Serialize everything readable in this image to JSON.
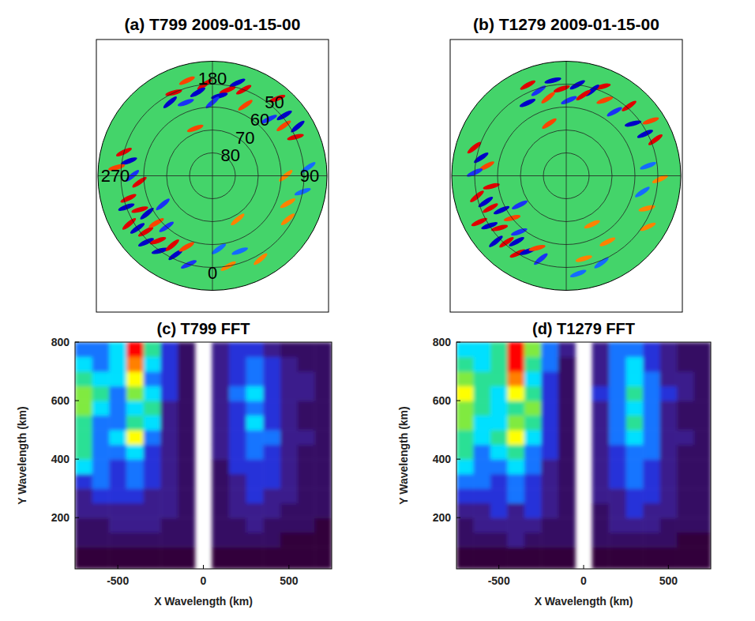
{
  "chart_data": [
    {
      "type": "polar_map",
      "title": "(a) T799 2009-01-15-00",
      "lat_lim": [
        40,
        90
      ],
      "lat_ticks": [
        50,
        60,
        70,
        80
      ],
      "lon_ticks": [
        180,
        270,
        90,
        0
      ],
      "zlim": [
        -3,
        3
      ],
      "waves": [
        [
          300,
          48,
          3
        ],
        [
          305,
          50,
          -3
        ],
        [
          310,
          52,
          3
        ],
        [
          315,
          49,
          -3
        ],
        [
          320,
          53,
          3
        ],
        [
          325,
          50,
          -3
        ],
        [
          330,
          55,
          3
        ],
        [
          335,
          52,
          -3
        ],
        [
          295,
          55,
          3
        ],
        [
          300,
          57,
          -3
        ],
        [
          310,
          58,
          2
        ],
        [
          285,
          52,
          3
        ],
        [
          290,
          50,
          -3
        ],
        [
          340,
          57,
          2
        ],
        [
          345,
          50,
          -2
        ],
        [
          318,
          60,
          -2
        ],
        [
          255,
          50,
          3
        ],
        [
          260,
          53,
          -3
        ],
        [
          265,
          48,
          2
        ],
        [
          270,
          55,
          -2
        ],
        [
          275,
          58,
          3
        ],
        [
          160,
          50,
          3
        ],
        [
          165,
          48,
          -3
        ],
        [
          170,
          52,
          3
        ],
        [
          175,
          55,
          -3
        ],
        [
          185,
          50,
          3
        ],
        [
          190,
          53,
          -3
        ],
        [
          195,
          47,
          2
        ],
        [
          200,
          56,
          -2
        ],
        [
          205,
          50,
          3
        ],
        [
          210,
          53,
          -3
        ],
        [
          155,
          56,
          2
        ],
        [
          180,
          58,
          -2
        ],
        [
          115,
          50,
          3
        ],
        [
          120,
          47,
          -3
        ],
        [
          125,
          52,
          2
        ],
        [
          130,
          49,
          -3
        ],
        [
          140,
          46,
          3
        ],
        [
          135,
          55,
          -2
        ],
        [
          70,
          55,
          1.5
        ],
        [
          80,
          50,
          -1.5
        ],
        [
          90,
          58,
          1.5
        ],
        [
          95,
          48,
          -1.5
        ],
        [
          60,
          52,
          1.5
        ],
        [
          10,
          50,
          1.5
        ],
        [
          20,
          55,
          -1.5
        ],
        [
          30,
          48,
          1.5
        ],
        [
          5,
          58,
          -1.5
        ],
        [
          300,
          65,
          -2
        ],
        [
          200,
          68,
          2
        ],
        [
          30,
          68,
          1.5
        ]
      ]
    },
    {
      "type": "polar_map",
      "title": "(b) T1279 2009-01-15-00",
      "lat_lim": [
        40,
        90
      ],
      "lat_ticks": [
        50,
        60,
        70,
        80
      ],
      "lon_ticks": [
        180,
        270,
        90,
        0
      ],
      "tick_labels": false,
      "zlim": [
        -3,
        3
      ],
      "waves": [
        [
          298,
          47,
          3
        ],
        [
          303,
          50,
          -3
        ],
        [
          308,
          53,
          3
        ],
        [
          313,
          48,
          -3
        ],
        [
          318,
          51,
          3
        ],
        [
          323,
          54,
          -3
        ],
        [
          328,
          50,
          3
        ],
        [
          333,
          53,
          -3
        ],
        [
          338,
          56,
          2
        ],
        [
          293,
          54,
          3
        ],
        [
          298,
          58,
          -3
        ],
        [
          308,
          60,
          2
        ],
        [
          283,
          50,
          3
        ],
        [
          288,
          53,
          -3
        ],
        [
          343,
          52,
          -2
        ],
        [
          320,
          58,
          -2
        ],
        [
          253,
          48,
          3
        ],
        [
          258,
          52,
          -3
        ],
        [
          263,
          55,
          2
        ],
        [
          268,
          50,
          -2
        ],
        [
          278,
          57,
          3
        ],
        [
          158,
          48,
          3
        ],
        [
          163,
          51,
          -3
        ],
        [
          168,
          54,
          3
        ],
        [
          173,
          50,
          -3
        ],
        [
          183,
          52,
          3
        ],
        [
          188,
          48,
          -3
        ],
        [
          193,
          55,
          2
        ],
        [
          198,
          51,
          -2
        ],
        [
          203,
          47,
          3
        ],
        [
          208,
          54,
          -3
        ],
        [
          153,
          53,
          2
        ],
        [
          178,
          57,
          -2
        ],
        [
          112,
          48,
          3
        ],
        [
          118,
          51,
          -3
        ],
        [
          123,
          46,
          2
        ],
        [
          128,
          53,
          -3
        ],
        [
          138,
          49,
          3
        ],
        [
          143,
          55,
          -2
        ],
        [
          68,
          52,
          1.5
        ],
        [
          78,
          56,
          -1.5
        ],
        [
          88,
          49,
          1.5
        ],
        [
          97,
          54,
          -1.5
        ],
        [
          58,
          48,
          1.5
        ],
        [
          12,
          53,
          1.5
        ],
        [
          22,
          49,
          -1.5
        ],
        [
          32,
          56,
          1.5
        ],
        [
          7,
          47,
          -1.5
        ],
        [
          302,
          66,
          -2
        ],
        [
          198,
          66,
          2
        ],
        [
          28,
          66,
          1.5
        ]
      ]
    },
    {
      "type": "heatmap",
      "title": "(c) T799 FFT",
      "x_label": "X Wavelength (km)",
      "y_label": "Y Wavelength (km)",
      "xlim": [
        -750,
        750
      ],
      "ylim": [
        25,
        800
      ],
      "xticks": [
        -500,
        0,
        500
      ],
      "yticks": [
        200,
        400,
        600,
        800
      ],
      "zlim": [
        0,
        10
      ],
      "x_edges": [
        -750,
        -650,
        -550,
        -450,
        -350,
        -250,
        -150,
        -50,
        50,
        150,
        250,
        350,
        450,
        550,
        650,
        750
      ],
      "y_edges": [
        25,
        100,
        150,
        200,
        250,
        300,
        350,
        400,
        450,
        500,
        550,
        600,
        650,
        700,
        750,
        800
      ],
      "cells": [
        [
          0,
          0,
          0,
          0,
          0,
          0,
          0,
          null,
          0,
          0,
          0,
          0,
          0,
          0,
          0
        ],
        [
          1,
          1,
          1,
          1,
          1,
          1,
          1,
          null,
          1,
          1,
          1,
          1,
          0,
          0,
          0
        ],
        [
          1,
          1,
          2,
          2,
          2,
          1,
          1,
          null,
          1,
          1,
          2,
          1,
          1,
          1,
          0
        ],
        [
          2,
          2,
          2,
          2,
          2,
          2,
          1,
          null,
          1,
          2,
          2,
          2,
          1,
          1,
          1
        ],
        [
          2,
          3,
          3,
          3,
          2,
          2,
          1,
          null,
          1,
          2,
          3,
          2,
          2,
          1,
          1
        ],
        [
          3,
          4,
          3,
          4,
          3,
          2,
          1,
          null,
          1,
          2,
          3,
          3,
          2,
          1,
          1
        ],
        [
          5,
          4,
          3,
          4,
          3,
          2,
          1,
          null,
          1,
          3,
          3,
          3,
          2,
          1,
          1
        ],
        [
          6,
          4,
          4,
          5,
          3,
          2,
          1,
          null,
          2,
          3,
          4,
          3,
          2,
          1,
          1
        ],
        [
          6,
          4,
          5,
          8,
          4,
          2,
          1,
          null,
          2,
          3,
          4,
          4,
          2,
          2,
          1
        ],
        [
          6,
          4,
          4,
          6,
          5,
          2,
          1,
          null,
          2,
          3,
          5,
          3,
          2,
          1,
          1
        ],
        [
          7,
          5,
          4,
          5,
          6,
          2,
          1,
          null,
          2,
          3,
          4,
          3,
          2,
          1,
          1
        ],
        [
          7,
          6,
          4,
          7,
          5,
          3,
          1,
          null,
          2,
          4,
          5,
          3,
          2,
          2,
          1
        ],
        [
          6,
          5,
          5,
          8,
          4,
          3,
          1,
          null,
          2,
          3,
          4,
          3,
          2,
          2,
          1
        ],
        [
          5,
          4,
          5,
          9,
          5,
          3,
          1,
          null,
          2,
          3,
          4,
          3,
          2,
          1,
          1
        ],
        [
          4,
          4,
          5,
          10,
          6,
          3,
          1,
          null,
          2,
          3,
          3,
          2,
          1,
          1,
          1
        ]
      ]
    },
    {
      "type": "heatmap",
      "title": "(d) T1279 FFT",
      "x_label": "X Wavelength (km)",
      "y_label": "Y Wavelength (km)",
      "xlim": [
        -750,
        750
      ],
      "ylim": [
        25,
        800
      ],
      "xticks": [
        -500,
        0,
        500
      ],
      "yticks": [
        200,
        400,
        600,
        800
      ],
      "zlim": [
        0,
        10
      ],
      "x_edges": [
        -750,
        -650,
        -550,
        -450,
        -350,
        -250,
        -150,
        -50,
        50,
        150,
        250,
        350,
        450,
        550,
        650,
        750
      ],
      "y_edges": [
        25,
        100,
        150,
        200,
        250,
        300,
        350,
        400,
        450,
        500,
        550,
        600,
        650,
        700,
        750,
        800
      ],
      "cells": [
        [
          0,
          0,
          0,
          0,
          0,
          0,
          0,
          null,
          0,
          0,
          0,
          0,
          0,
          0,
          0
        ],
        [
          1,
          1,
          1,
          2,
          1,
          1,
          1,
          null,
          1,
          1,
          1,
          1,
          1,
          0,
          0
        ],
        [
          1,
          2,
          2,
          2,
          2,
          1,
          1,
          null,
          1,
          2,
          2,
          2,
          1,
          1,
          1
        ],
        [
          2,
          2,
          3,
          2,
          3,
          2,
          1,
          null,
          1,
          2,
          3,
          2,
          2,
          1,
          1
        ],
        [
          3,
          3,
          3,
          4,
          3,
          2,
          1,
          null,
          2,
          2,
          3,
          3,
          2,
          1,
          1
        ],
        [
          4,
          4,
          3,
          4,
          3,
          2,
          1,
          null,
          2,
          3,
          4,
          3,
          2,
          1,
          1
        ],
        [
          5,
          4,
          4,
          5,
          4,
          2,
          1,
          null,
          2,
          3,
          4,
          3,
          2,
          1,
          1
        ],
        [
          6,
          4,
          5,
          6,
          4,
          3,
          1,
          null,
          2,
          3,
          4,
          4,
          2,
          1,
          1
        ],
        [
          6,
          5,
          6,
          8,
          5,
          3,
          1,
          null,
          2,
          4,
          5,
          4,
          2,
          2,
          1
        ],
        [
          7,
          5,
          5,
          7,
          6,
          3,
          1,
          null,
          2,
          4,
          6,
          4,
          2,
          1,
          1
        ],
        [
          7,
          6,
          5,
          6,
          7,
          3,
          1,
          null,
          2,
          4,
          5,
          4,
          2,
          1,
          1
        ],
        [
          8,
          6,
          5,
          8,
          6,
          3,
          1,
          null,
          3,
          4,
          6,
          4,
          3,
          2,
          1
        ],
        [
          7,
          6,
          6,
          9,
          5,
          3,
          1,
          null,
          2,
          4,
          5,
          4,
          2,
          2,
          1
        ],
        [
          6,
          5,
          6,
          10,
          6,
          4,
          1,
          null,
          2,
          4,
          5,
          3,
          2,
          1,
          1
        ],
        [
          5,
          5,
          6,
          10,
          7,
          4,
          2,
          null,
          2,
          4,
          4,
          3,
          2,
          1,
          1
        ]
      ]
    }
  ]
}
